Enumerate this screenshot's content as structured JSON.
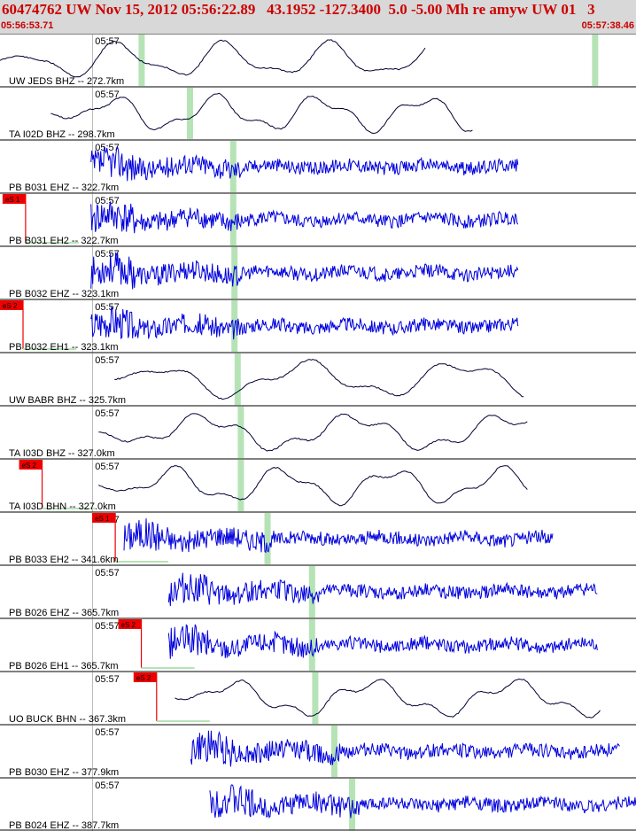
{
  "header": {
    "title": "60474762 UW Nov 15, 2012 05:56:22.89   43.1952 -127.3400  5.0 -5.00 Mh re amyw UW 01   3",
    "start_time": "05:56:53.71",
    "end_time": "05:57:38.46"
  },
  "colors": {
    "header_bg": "#d8d8d8",
    "header_text": "#cc0000",
    "trace_broadband": "#000033",
    "trace_short": "#0000dd",
    "phase_marker": "#b6e3b6",
    "pick_box": "#ee0000"
  },
  "tick_label": "05:57",
  "traces": [
    {
      "label": "UW JEDS BHZ -- 272.7km",
      "type": "bb",
      "start": 0.0,
      "end": 0.67,
      "tick_x": 0.148,
      "markers": [
        0.222,
        0.935
      ],
      "pick": null,
      "seed": 11
    },
    {
      "label": "TA I02D BHZ -- 298.7km",
      "type": "bb",
      "start": 0.08,
      "end": 0.745,
      "tick_x": 0.148,
      "markers": [
        0.298
      ],
      "pick": null,
      "seed": 23
    },
    {
      "label": "PB B031 EHZ -- 322.7km",
      "type": "sp",
      "start": 0.143,
      "end": 0.815,
      "tick_x": 0.148,
      "markers": [
        0.366
      ],
      "pick": null,
      "seed": 37
    },
    {
      "label": "PB B031 EH2 -- 322.7km",
      "type": "sp",
      "start": 0.143,
      "end": 0.815,
      "tick_x": 0.148,
      "markers": [
        0.366
      ],
      "pick": {
        "text": "eS 1",
        "x": 0.004
      },
      "seed": 41
    },
    {
      "label": "PB B032 EHZ -- 323.1km",
      "type": "sp",
      "start": 0.143,
      "end": 0.815,
      "tick_x": 0.148,
      "markers": [
        0.368
      ],
      "pick": null,
      "seed": 53
    },
    {
      "label": "PB B032 EH1 -- 323.1km",
      "type": "sp",
      "start": 0.143,
      "end": 0.815,
      "tick_x": 0.148,
      "markers": [
        0.368
      ],
      "pick": {
        "text": "eS 2",
        "x": 0.0
      },
      "seed": 67
    },
    {
      "label": "UW BABR BHZ -- 325.7km",
      "type": "bb",
      "start": 0.18,
      "end": 0.825,
      "tick_x": 0.148,
      "markers": [
        0.373
      ],
      "pick": null,
      "seed": 71
    },
    {
      "label": "TA I03D BHZ -- 327.0km",
      "type": "bb",
      "start": 0.155,
      "end": 0.83,
      "tick_x": 0.148,
      "markers": [
        0.378
      ],
      "pick": null,
      "seed": 83
    },
    {
      "label": "TA I03D BHN -- 327.0km",
      "type": "bb",
      "start": 0.155,
      "end": 0.83,
      "tick_x": 0.148,
      "markers": [
        0.378
      ],
      "pick": {
        "text": "eS 2",
        "x": 0.03
      },
      "seed": 97
    },
    {
      "label": "PB B033 EH2 -- 341.6km",
      "type": "sp",
      "start": 0.195,
      "end": 0.87,
      "tick_x": 0.148,
      "markers": [
        0.42
      ],
      "pick": {
        "text": "eS 1",
        "x": 0.145
      },
      "seed": 101
    },
    {
      "label": "PB B026 EHZ -- 365.7km",
      "type": "sp",
      "start": 0.265,
      "end": 0.94,
      "tick_x": 0.148,
      "markers": [
        0.49
      ],
      "pick": null,
      "seed": 113
    },
    {
      "label": "PB B026 EH1 -- 365.7km",
      "type": "sp",
      "start": 0.265,
      "end": 0.94,
      "tick_x": 0.148,
      "markers": [
        0.49
      ],
      "pick": {
        "text": "eS 2",
        "x": 0.186
      },
      "seed": 127
    },
    {
      "label": "UO BUCK BHN -- 367.3km",
      "type": "bb",
      "start": 0.275,
      "end": 0.945,
      "tick_x": 0.148,
      "markers": [
        0.495
      ],
      "pick": {
        "text": "eS 2",
        "x": 0.21
      },
      "seed": 131
    },
    {
      "label": "PB B030 EHZ -- 377.9km",
      "type": "sp",
      "start": 0.3,
      "end": 0.975,
      "tick_x": 0.148,
      "markers": [
        0.525
      ],
      "pick": null,
      "seed": 149
    },
    {
      "label": "PB B024 EHZ -- 387.7km",
      "type": "sp",
      "start": 0.33,
      "end": 1.0,
      "tick_x": 0.148,
      "markers": [
        0.553
      ],
      "pick": null,
      "seed": 151
    }
  ]
}
